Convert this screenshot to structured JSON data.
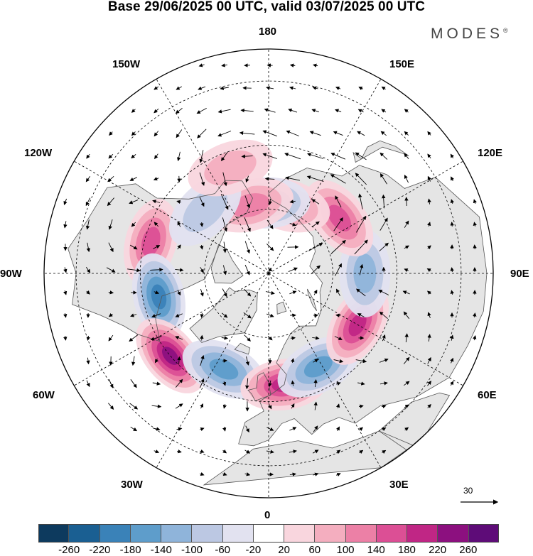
{
  "title": "Base 29/06/2025 00 UTC, valid 03/07/2025 00 UTC",
  "brand": "MODES",
  "brand_mark": "®",
  "longitude_labels": {
    "n180": "180",
    "e150": "150E",
    "e120": "120E",
    "e90": "90E",
    "e60": "60E",
    "e30": "30E",
    "s0": "0",
    "w30": "30W",
    "w60": "60W",
    "w90": "90W",
    "w120": "120W",
    "w150": "150W"
  },
  "reference_vector": {
    "label": "30"
  },
  "colorbar": {
    "colors": [
      "#0d3a5e",
      "#1a5f92",
      "#3a82b8",
      "#5e9dcb",
      "#8fb4da",
      "#bcc8e3",
      "#e2e2f0",
      "#ffffff",
      "#f9d6de",
      "#f4aebf",
      "#ec80a6",
      "#dc4f95",
      "#c02685",
      "#8c107f",
      "#5e0c78"
    ],
    "tick_labels": [
      "-260",
      "-220",
      "-180",
      "-140",
      "-100",
      "-60",
      "-20",
      "20",
      "60",
      "100",
      "140",
      "180",
      "220",
      "260"
    ]
  },
  "anomaly_centers": [
    {
      "name": "pos-west-canada",
      "sign": "positive",
      "level": "140",
      "lon": -105,
      "lat": 52
    },
    {
      "name": "neg-hudson",
      "sign": "negative",
      "level": "-180",
      "lon": -78,
      "lat": 55
    },
    {
      "name": "pos-greenland-south",
      "sign": "positive",
      "level": "220",
      "lon": -50,
      "lat": 50
    },
    {
      "name": "neg-north-atlantic",
      "sign": "negative",
      "level": "-140",
      "lon": -25,
      "lat": 57
    },
    {
      "name": "pos-scandinavia",
      "sign": "positive",
      "level": "180",
      "lon": 8,
      "lat": 55
    },
    {
      "name": "neg-west-russia",
      "sign": "negative",
      "level": "-140",
      "lon": 28,
      "lat": 57
    },
    {
      "name": "pos-west-siberia",
      "sign": "positive",
      "level": "180",
      "lon": 60,
      "lat": 58
    },
    {
      "name": "neg-central-siberia",
      "sign": "negative",
      "level": "-100",
      "lon": 90,
      "lat": 60
    },
    {
      "name": "pos-east-siberia",
      "sign": "positive",
      "level": "140",
      "lon": 128,
      "lat": 62
    },
    {
      "name": "pos-chukotka",
      "sign": "positive",
      "level": "100",
      "lon": 165,
      "lat": 68
    },
    {
      "name": "neg-bering",
      "sign": "negative",
      "level": "-140",
      "lon": -178,
      "lat": 68
    },
    {
      "name": "pos-alaska-north",
      "sign": "positive",
      "level": "100",
      "lon": -165,
      "lat": 68
    },
    {
      "name": "neg-alaska-south",
      "sign": "negative",
      "level": "-60",
      "lon": -135,
      "lat": 62
    },
    {
      "name": "pos-gulf-alaska",
      "sign": "positive",
      "level": "60",
      "lon": -160,
      "lat": 55
    }
  ]
}
